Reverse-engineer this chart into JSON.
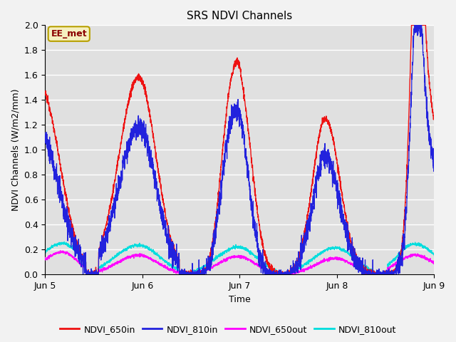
{
  "title": "SRS NDVI Channels",
  "xlabel": "Time",
  "ylabel": "NDVI Channels (W/m2/mm)",
  "xlim": [
    0,
    4.0
  ],
  "ylim": [
    0.0,
    2.0
  ],
  "xtick_positions": [
    0,
    1,
    2,
    3,
    4
  ],
  "xtick_labels": [
    "Jun 5",
    "Jun 6",
    "Jun 7",
    "Jun 8",
    "Jun 9"
  ],
  "ytick_positions": [
    0.0,
    0.2,
    0.4,
    0.6,
    0.8,
    1.0,
    1.2,
    1.4,
    1.6,
    1.8,
    2.0
  ],
  "plot_bg_color": "#e0e0e0",
  "fig_bg_color": "#f2f2f2",
  "grid_color": "#ffffff",
  "annotation_text": "EE_met",
  "annotation_bg": "#f5f0c0",
  "annotation_border": "#b8a000",
  "annotation_text_color": "#8b0000",
  "line_650in_color": "#ee1111",
  "line_810in_color": "#2222dd",
  "line_650out_color": "#ff00ff",
  "line_810out_color": "#00dddd",
  "legend_labels": [
    "NDVI_650in",
    "NDVI_810in",
    "NDVI_650out",
    "NDVI_810out"
  ]
}
